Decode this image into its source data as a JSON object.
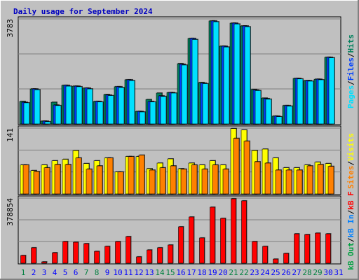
{
  "title": "Daily usage for September 2024",
  "legend_separator": "/",
  "chart_data": [
    {
      "type": "bar",
      "ylim": [
        0,
        3783
      ],
      "yticks": [
        3783
      ],
      "series": [
        {
          "name": "Hits",
          "color": "#00805c",
          "values": [
            810,
            1260,
            100,
            780,
            1390,
            1360,
            1290,
            810,
            1060,
            1340,
            1590,
            450,
            880,
            1110,
            1130,
            2170,
            3080,
            1490,
            3710,
            2800,
            3630,
            3530,
            1240,
            930,
            280,
            660,
            1640,
            1560,
            1610,
            2400,
            null
          ]
        },
        {
          "name": "Files",
          "color": "#0040ff",
          "values": [
            780,
            1260,
            100,
            680,
            1390,
            1360,
            1290,
            810,
            1040,
            1340,
            1590,
            450,
            810,
            1010,
            1130,
            2150,
            3080,
            1470,
            3710,
            2800,
            3630,
            3530,
            1220,
            910,
            280,
            660,
            1640,
            1560,
            1610,
            2400,
            null
          ]
        },
        {
          "name": "Pages",
          "color": "#00e0ff",
          "values": [
            760,
            1230,
            80,
            660,
            1360,
            1340,
            1260,
            790,
            1020,
            1310,
            1560,
            430,
            790,
            990,
            1110,
            2120,
            3040,
            1450,
            3680,
            2770,
            3600,
            3500,
            1200,
            890,
            260,
            640,
            1620,
            1540,
            1590,
            2380,
            null
          ]
        }
      ]
    },
    {
      "type": "bar",
      "ylim": [
        0,
        141
      ],
      "yticks": [
        141
      ],
      "series": [
        {
          "name": "Visits",
          "color": "#ffff00",
          "values": [
            62,
            50,
            62,
            71,
            74,
            93,
            65,
            71,
            77,
            47,
            80,
            80,
            54,
            66,
            75,
            54,
            66,
            62,
            71,
            62,
            140,
            137,
            93,
            96,
            77,
            56,
            56,
            62,
            68,
            65,
            null
          ]
        },
        {
          "name": "Sites",
          "color": "#ff8000",
          "values": [
            62,
            48,
            56,
            63,
            63,
            77,
            53,
            60,
            77,
            47,
            80,
            83,
            51,
            56,
            60,
            53,
            62,
            53,
            62,
            53,
            119,
            113,
            69,
            66,
            51,
            51,
            51,
            60,
            63,
            59,
            null
          ]
        }
      ]
    },
    {
      "type": "bar",
      "ylim": [
        0,
        378854
      ],
      "yticks": [
        378854
      ],
      "categories": [
        "1",
        "2",
        "3",
        "4",
        "5",
        "6",
        "7",
        "8",
        "9",
        "10",
        "11",
        "12",
        "13",
        "14",
        "15",
        "16",
        "17",
        "18",
        "19",
        "20",
        "21",
        "22",
        "23",
        "24",
        "25",
        "26",
        "27",
        "28",
        "29",
        "30",
        "31"
      ],
      "highlight": [
        true,
        false,
        false,
        false,
        false,
        false,
        true,
        true,
        false,
        false,
        false,
        false,
        false,
        true,
        true,
        false,
        false,
        false,
        false,
        false,
        true,
        true,
        false,
        false,
        false,
        false,
        false,
        true,
        true,
        false,
        false
      ],
      "highlight_color": "#008040",
      "label_color": "#0000ff",
      "series": [
        {
          "name": "kB F",
          "color": "#ff0000",
          "values": [
            45000,
            90000,
            8000,
            61000,
            126000,
            122000,
            114000,
            69000,
            98000,
            126000,
            155000,
            37000,
            77000,
            90000,
            106000,
            212000,
            269000,
            147000,
            326000,
            261000,
            375000,
            363000,
            126000,
            98000,
            24000,
            57000,
            171000,
            167000,
            175000,
            171000,
            null
          ]
        },
        {
          "name": "kB In",
          "color": "#0080ff",
          "values": [
            null,
            null,
            null,
            null,
            null,
            null,
            null,
            null,
            null,
            null,
            null,
            null,
            null,
            null,
            null,
            null,
            null,
            null,
            null,
            null,
            null,
            null,
            null,
            null,
            null,
            null,
            null,
            null,
            null,
            null,
            null
          ]
        },
        {
          "name": "kB Out",
          "color": "#00a040",
          "values": [
            null,
            null,
            null,
            null,
            null,
            null,
            null,
            null,
            null,
            null,
            null,
            null,
            null,
            null,
            null,
            null,
            null,
            null,
            null,
            null,
            null,
            null,
            null,
            null,
            null,
            null,
            null,
            null,
            null,
            null,
            null
          ]
        }
      ]
    }
  ]
}
